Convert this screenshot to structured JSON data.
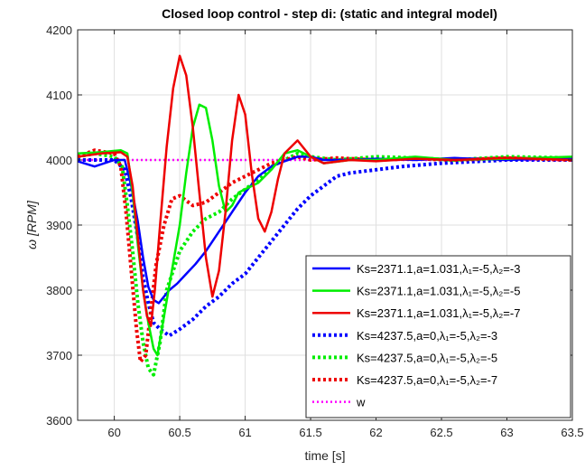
{
  "chart_data": {
    "type": "line",
    "title": "Closed loop control - step di: (static and integral model)",
    "xlabel": "time [s]",
    "ylabel": "ω [RPM]",
    "xlim": [
      59.72,
      63.5
    ],
    "ylim": [
      3600,
      4200
    ],
    "xticks": [
      60,
      60.5,
      61,
      61.5,
      62,
      62.5,
      63,
      63.5
    ],
    "yticks": [
      3600,
      3700,
      3800,
      3900,
      4000,
      4100,
      4200
    ],
    "xtick_labels": [
      "60",
      "60.5",
      "61",
      "61.5",
      "62",
      "62.5",
      "63",
      "63.5"
    ],
    "ytick_labels": [
      "3600",
      "3700",
      "3800",
      "3900",
      "4000",
      "4100",
      "4200"
    ],
    "grid": true,
    "legend_position": "bottom-right",
    "series": [
      {
        "id": "s1",
        "label": "Ks=2371.1,a=1.031,λ₁=-5,λ₂=-3",
        "color": "#0000ff",
        "style": "solid",
        "x": [
          59.72,
          59.85,
          60.0,
          60.08,
          60.13,
          60.18,
          60.22,
          60.26,
          60.3,
          60.34,
          60.38,
          60.42,
          60.48,
          60.55,
          60.62,
          60.7,
          60.8,
          60.9,
          61.0,
          61.1,
          61.2,
          61.3,
          61.4,
          61.5,
          61.6,
          61.8,
          62.0,
          62.3,
          62.6,
          63.0,
          63.5
        ],
        "y": [
          3998,
          3990,
          4000,
          4000,
          3960,
          3905,
          3850,
          3805,
          3785,
          3780,
          3790,
          3800,
          3810,
          3825,
          3840,
          3860,
          3890,
          3920,
          3950,
          3975,
          3990,
          3998,
          4005,
          4005,
          4000,
          4000,
          4002,
          4000,
          4003,
          4000,
          4003
        ]
      },
      {
        "id": "s2",
        "label": "Ks=2371.1,a=1.031,λ₁=-5,λ₂=-5",
        "color": "#00ee00",
        "style": "solid",
        "x": [
          59.72,
          59.9,
          60.05,
          60.1,
          60.14,
          60.18,
          60.22,
          60.26,
          60.3,
          60.33,
          60.38,
          60.44,
          60.5,
          60.55,
          60.6,
          60.65,
          60.7,
          60.75,
          60.8,
          60.85,
          60.9,
          60.95,
          61.0,
          61.1,
          61.2,
          61.3,
          61.4,
          61.5,
          61.6,
          61.8,
          62.0,
          62.3,
          62.6,
          63.0,
          63.5
        ],
        "y": [
          4010,
          4012,
          4015,
          4010,
          3950,
          3870,
          3800,
          3750,
          3710,
          3700,
          3760,
          3830,
          3900,
          3980,
          4050,
          4085,
          4080,
          4030,
          3960,
          3920,
          3930,
          3950,
          3955,
          3965,
          3985,
          4010,
          4015,
          4005,
          3995,
          4000,
          4000,
          4005,
          4000,
          4002,
          4005
        ]
      },
      {
        "id": "s3",
        "label": "Ks=2371.1,a=1.031,λ₁=-5,λ₂=-7",
        "color": "#ee0000",
        "style": "solid",
        "x": [
          59.72,
          59.9,
          60.05,
          60.1,
          60.14,
          60.18,
          60.22,
          60.25,
          60.28,
          60.31,
          60.35,
          60.4,
          60.45,
          60.5,
          60.55,
          60.6,
          60.65,
          60.7,
          60.75,
          60.8,
          60.85,
          60.9,
          60.95,
          61.0,
          61.05,
          61.1,
          61.15,
          61.2,
          61.25,
          61.3,
          61.4,
          61.5,
          61.6,
          61.8,
          62.0,
          62.3,
          62.6,
          63.0,
          63.5
        ],
        "y": [
          4005,
          4010,
          4012,
          4005,
          3960,
          3880,
          3800,
          3760,
          3745,
          3800,
          3900,
          4020,
          4110,
          4160,
          4130,
          4050,
          3950,
          3850,
          3790,
          3830,
          3920,
          4030,
          4100,
          4070,
          3980,
          3910,
          3890,
          3920,
          3970,
          4010,
          4030,
          4005,
          3995,
          4000,
          3998,
          4002,
          4000,
          4003,
          4000
        ]
      },
      {
        "id": "s4",
        "label": "Ks=4237.5,a=0,λ₁=-5,λ₂=-3",
        "color": "#0000ff",
        "style": "dotted",
        "x": [
          59.72,
          59.85,
          60.0,
          60.08,
          60.13,
          60.18,
          60.22,
          60.26,
          60.3,
          60.35,
          60.42,
          60.5,
          60.6,
          60.7,
          60.8,
          60.9,
          61.0,
          61.1,
          61.2,
          61.3,
          61.4,
          61.5,
          61.6,
          61.7,
          61.8,
          62.0,
          62.2,
          62.5,
          62.8,
          63.0,
          63.5
        ],
        "y": [
          4000,
          4000,
          4000,
          3985,
          3940,
          3880,
          3820,
          3780,
          3750,
          3740,
          3730,
          3740,
          3755,
          3775,
          3790,
          3810,
          3825,
          3850,
          3875,
          3900,
          3925,
          3945,
          3960,
          3975,
          3980,
          3985,
          3990,
          3995,
          3998,
          4000,
          4000
        ]
      },
      {
        "id": "s5",
        "label": "Ks=4237.5,a=0,λ₁=-5,λ₂=-5",
        "color": "#00ee00",
        "style": "dotted",
        "x": [
          59.72,
          59.85,
          60.0,
          60.06,
          60.1,
          60.14,
          60.18,
          60.22,
          60.26,
          60.3,
          60.35,
          60.4,
          60.5,
          60.6,
          60.7,
          60.8,
          60.9,
          61.0,
          61.1,
          61.2,
          61.3,
          61.4,
          61.5,
          61.7,
          62.0,
          62.3,
          62.6,
          63.0,
          63.5
        ],
        "y": [
          4005,
          4010,
          4005,
          3990,
          3930,
          3860,
          3780,
          3720,
          3680,
          3670,
          3720,
          3800,
          3860,
          3890,
          3910,
          3920,
          3940,
          3955,
          3970,
          3990,
          4000,
          4010,
          4005,
          4000,
          4005,
          4003,
          4000,
          4005,
          4003
        ]
      },
      {
        "id": "s6",
        "label": "Ks=4237.5,a=0,λ₁=-5,λ₂=-7",
        "color": "#ee0000",
        "style": "dotted",
        "x": [
          59.72,
          59.85,
          60.0,
          60.05,
          60.09,
          60.13,
          60.17,
          60.2,
          60.24,
          60.28,
          60.32,
          60.38,
          60.44,
          60.5,
          60.6,
          60.7,
          60.8,
          60.9,
          61.0,
          61.1,
          61.2,
          61.3,
          61.4,
          61.5,
          61.7,
          62.0,
          62.3,
          62.6,
          63.0,
          63.5
        ],
        "y": [
          4005,
          4015,
          4010,
          3990,
          3920,
          3830,
          3740,
          3690,
          3700,
          3770,
          3840,
          3900,
          3940,
          3945,
          3930,
          3935,
          3950,
          3965,
          3975,
          3985,
          3995,
          4000,
          4005,
          4000,
          4003,
          4000,
          4002,
          4000,
          4003,
          4000
        ]
      },
      {
        "id": "s7",
        "label": "w",
        "color": "#ff00ff",
        "style": "dotted",
        "x": [
          59.72,
          63.5
        ],
        "y": [
          4000,
          4000
        ]
      }
    ]
  },
  "colors": {
    "axis": "#262626",
    "grid": "#dfdfdf",
    "background": "#ffffff",
    "legend_border": "#262626"
  }
}
